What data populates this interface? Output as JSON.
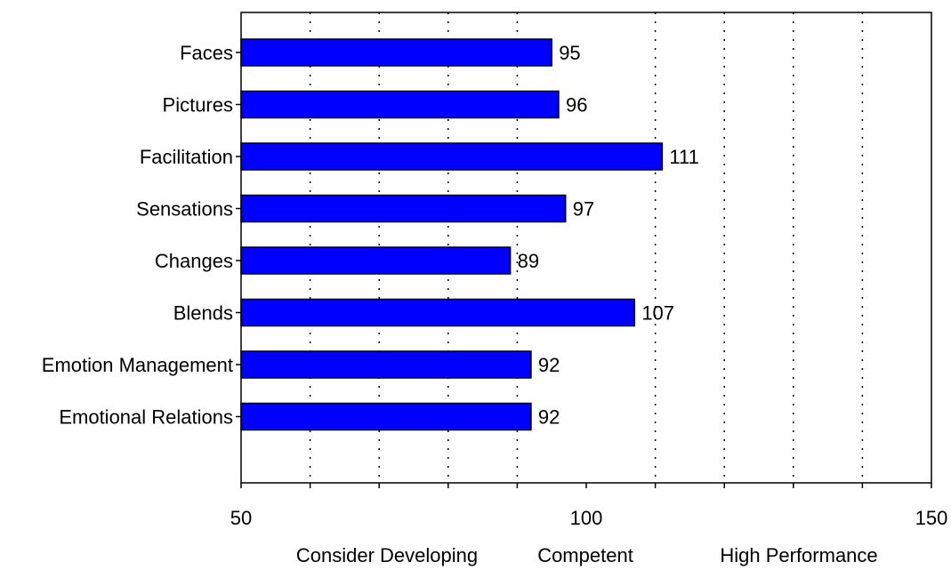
{
  "chart_data": {
    "type": "bar",
    "orientation": "horizontal",
    "categories": [
      "Faces",
      "Pictures",
      "Facilitation",
      "Sensations",
      "Changes",
      "Blends",
      "Emotion Management",
      "Emotional Relations"
    ],
    "values": [
      95,
      96,
      111,
      97,
      89,
      107,
      92,
      92
    ],
    "data_labels": [
      "95",
      "96",
      "111",
      "97",
      "89",
      "107",
      "92",
      "92"
    ],
    "xlim": [
      50,
      150
    ],
    "x_ticks": [
      50,
      100,
      150
    ],
    "x_tick_labels": [
      "50",
      "100",
      "150"
    ],
    "gridlines": [
      60,
      70,
      80,
      90,
      110,
      120,
      130,
      140
    ],
    "grid": "vertical dotted",
    "zone_labels": [
      "Consider Developing",
      "Competent",
      "High Performance"
    ],
    "title": "",
    "xlabel": "",
    "ylabel": "",
    "legend": "none",
    "colors": {
      "bar_fill": "#0000FF",
      "bar_stroke": "#000000",
      "grid": "#000000",
      "frame": "#000000",
      "background": "#FFFFFF"
    }
  }
}
